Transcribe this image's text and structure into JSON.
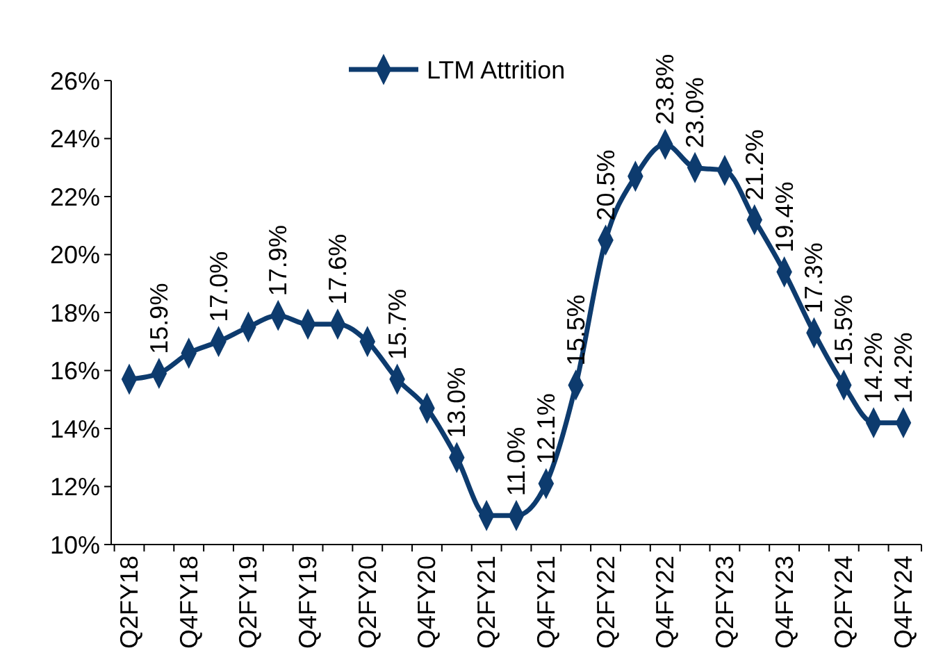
{
  "chart_data": {
    "type": "line",
    "categories": [
      "Q2FY18",
      null,
      "Q4FY18",
      null,
      "Q2FY19",
      null,
      "Q4FY19",
      null,
      "Q2FY20",
      null,
      "Q4FY20",
      null,
      "Q2FY21",
      null,
      "Q4FY21",
      null,
      "Q2FY22",
      null,
      "Q4FY22",
      null,
      "Q2FY23",
      null,
      "Q4FY23",
      null,
      "Q2FY24",
      null,
      "Q4FY24"
    ],
    "series": [
      {
        "name": "LTM Attrition",
        "color": "#0d3b6e",
        "values": [
          15.7,
          15.9,
          16.6,
          17.0,
          17.5,
          17.9,
          17.6,
          17.6,
          17.0,
          15.7,
          14.7,
          13.0,
          11.0,
          11.0,
          12.1,
          15.5,
          20.5,
          22.7,
          23.8,
          23.0,
          22.9,
          21.2,
          19.4,
          17.3,
          15.5,
          14.2,
          14.2
        ],
        "value_labels": [
          null,
          "15.9%",
          null,
          "17.0%",
          null,
          "17.9%",
          null,
          "17.6%",
          null,
          "15.7%",
          null,
          "13.0%",
          null,
          "11.0%",
          "12.1%",
          "15.5%",
          "20.5%",
          null,
          "23.8%",
          "23.0%",
          null,
          "21.2%",
          "19.4%",
          "17.3%",
          "15.5%",
          "14.2%",
          "14.2%"
        ]
      }
    ],
    "ylim": [
      10,
      26
    ],
    "yticks": [
      {
        "value": 10,
        "label": "10%"
      },
      {
        "value": 12,
        "label": "12%"
      },
      {
        "value": 14,
        "label": "14%"
      },
      {
        "value": 16,
        "label": "16%"
      },
      {
        "value": 18,
        "label": "18%"
      },
      {
        "value": 20,
        "label": "20%"
      },
      {
        "value": 22,
        "label": "22%"
      },
      {
        "value": 24,
        "label": "24%"
      },
      {
        "value": 26,
        "label": "26%"
      }
    ],
    "legend": "top",
    "marker": "diamond",
    "line_style": "solid"
  }
}
